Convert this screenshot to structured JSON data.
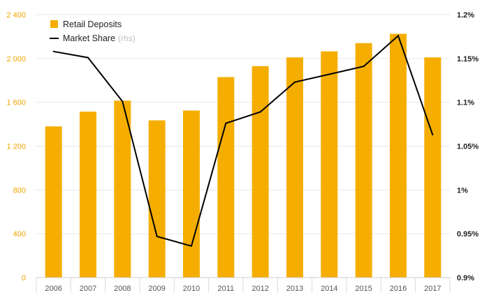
{
  "chart_data": {
    "type": "bar",
    "categories": [
      "2006",
      "2007",
      "2008",
      "2009",
      "2010",
      "2011",
      "2012",
      "2013",
      "2014",
      "2015",
      "2016",
      "2017"
    ],
    "series": [
      {
        "name": "Retail Deposits",
        "type": "bar",
        "axis": "left",
        "color": "#f5ae00",
        "values": [
          1380,
          1515,
          1615,
          1435,
          1525,
          1830,
          1930,
          2010,
          2065,
          2140,
          2225,
          2010
        ]
      },
      {
        "name": "Market Share",
        "type": "line",
        "axis": "right",
        "color": "#000000",
        "values": [
          1.158,
          1.151,
          1.101,
          0.947,
          0.936,
          1.076,
          1.089,
          1.123,
          1.132,
          1.141,
          1.176,
          1.063
        ]
      }
    ],
    "legend": {
      "position": "top-left",
      "items": [
        {
          "label": "Retail Deposits",
          "note": "",
          "marker": "square"
        },
        {
          "label": "Market Share",
          "note": "(rhs)",
          "marker": "line"
        }
      ]
    },
    "y_left": {
      "ylim": [
        0,
        2400
      ],
      "ticks": [
        0,
        400,
        800,
        1200,
        1600,
        2000,
        2400
      ],
      "tick_labels": [
        "0",
        "400",
        "800",
        "1 200",
        "1 600",
        "2 000",
        "2 400"
      ]
    },
    "y_right": {
      "ylim": [
        0.9,
        1.2
      ],
      "ticks": [
        0.9,
        0.95,
        1.0,
        1.05,
        1.1,
        1.15,
        1.2
      ],
      "tick_labels": [
        "0.9%",
        "0.95%",
        "1%",
        "1.05%",
        "1.1%",
        "1.15%",
        "1.2%"
      ]
    },
    "grid": true
  }
}
